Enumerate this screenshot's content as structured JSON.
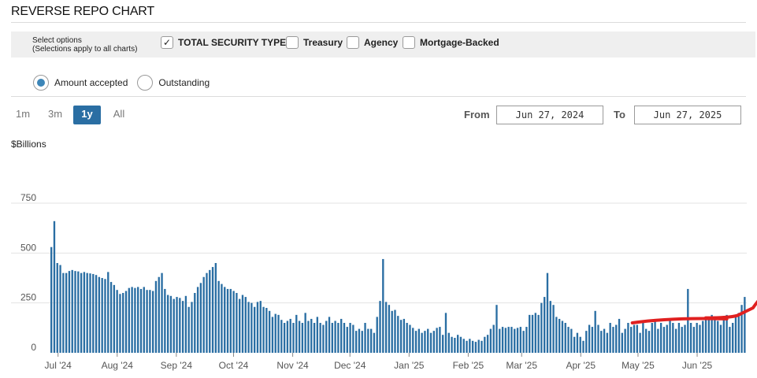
{
  "header": {
    "title": "REVERSE REPO CHART"
  },
  "options": {
    "label_line1": "Select options",
    "label_line2": "(Selections apply to all charts)",
    "checkboxes": [
      {
        "label": "TOTAL SECURITY TYPES",
        "checked": true
      },
      {
        "label": "Treasury",
        "checked": false
      },
      {
        "label": "Agency",
        "checked": false
      },
      {
        "label": "Mortgage-Backed",
        "checked": false
      }
    ]
  },
  "metric": {
    "options": [
      {
        "label": "Amount accepted",
        "selected": true
      },
      {
        "label": "Outstanding",
        "selected": false
      }
    ]
  },
  "range": {
    "buttons": [
      "1m",
      "3m",
      "1y",
      "All"
    ],
    "selected": "1y"
  },
  "dates": {
    "from_label": "From",
    "from_value": "Jun 27, 2024",
    "to_label": "To",
    "to_value": "Jun 27, 2025"
  },
  "colors": {
    "bar": "#2a6ea3",
    "annotation": "#e02020",
    "selected": "#2a6ea3"
  },
  "chart_data": {
    "type": "bar",
    "ylabel": "$Billions",
    "ylim": [
      0,
      750
    ],
    "yticks": [
      0,
      250,
      500,
      750
    ],
    "grid": true,
    "xticks": [
      {
        "label": "Jul '24",
        "date": "2024-07-01"
      },
      {
        "label": "Aug '24",
        "date": "2024-08-01"
      },
      {
        "label": "Sep '24",
        "date": "2024-09-01"
      },
      {
        "label": "Oct '24",
        "date": "2024-10-01"
      },
      {
        "label": "Nov '24",
        "date": "2024-11-01"
      },
      {
        "label": "Dec '24",
        "date": "2024-12-01"
      },
      {
        "label": "Jan '25",
        "date": "2025-01-01"
      },
      {
        "label": "Feb '25",
        "date": "2025-02-01"
      },
      {
        "label": "Mar '25",
        "date": "2025-03-01"
      },
      {
        "label": "Apr '25",
        "date": "2025-04-01"
      },
      {
        "label": "May '25",
        "date": "2025-05-01"
      },
      {
        "label": "Jun '25",
        "date": "2025-06-01"
      }
    ],
    "x_start": "2024-06-27",
    "x_end": "2025-06-27",
    "values": [
      530,
      660,
      450,
      440,
      400,
      400,
      410,
      415,
      410,
      408,
      400,
      405,
      400,
      398,
      395,
      390,
      380,
      375,
      370,
      405,
      355,
      340,
      315,
      295,
      300,
      310,
      325,
      330,
      325,
      330,
      320,
      330,
      315,
      315,
      310,
      360,
      380,
      400,
      320,
      290,
      285,
      270,
      280,
      275,
      260,
      285,
      230,
      255,
      300,
      330,
      350,
      380,
      400,
      415,
      430,
      450,
      360,
      345,
      330,
      320,
      320,
      310,
      300,
      270,
      290,
      280,
      255,
      250,
      230,
      255,
      260,
      230,
      225,
      210,
      180,
      195,
      190,
      165,
      150,
      160,
      170,
      150,
      190,
      160,
      150,
      200,
      160,
      170,
      150,
      180,
      150,
      140,
      160,
      180,
      150,
      160,
      150,
      170,
      150,
      130,
      150,
      140,
      110,
      120,
      110,
      150,
      120,
      120,
      100,
      180,
      260,
      470,
      255,
      240,
      210,
      215,
      185,
      165,
      170,
      150,
      140,
      125,
      110,
      120,
      100,
      110,
      120,
      100,
      110,
      125,
      130,
      90,
      200,
      100,
      80,
      75,
      90,
      80,
      70,
      60,
      70,
      60,
      55,
      65,
      60,
      80,
      90,
      120,
      140,
      240,
      120,
      130,
      125,
      130,
      130,
      120,
      125,
      130,
      110,
      130,
      190,
      190,
      200,
      190,
      250,
      280,
      400,
      260,
      240,
      180,
      170,
      160,
      150,
      130,
      120,
      80,
      100,
      80,
      60,
      110,
      140,
      130,
      210,
      140,
      110,
      120,
      100,
      150,
      130,
      140,
      170,
      100,
      120,
      150,
      130,
      140,
      140,
      100,
      150,
      120,
      110,
      150,
      160,
      120,
      150,
      130,
      140,
      160,
      150,
      120,
      150,
      130,
      140,
      320,
      150,
      130,
      150,
      140,
      160,
      170,
      180,
      190,
      180,
      160,
      140,
      170,
      190,
      130,
      150,
      180,
      200,
      240,
      280
    ],
    "annotation": "hand-drawn red line over May–Jun '25 bars"
  }
}
